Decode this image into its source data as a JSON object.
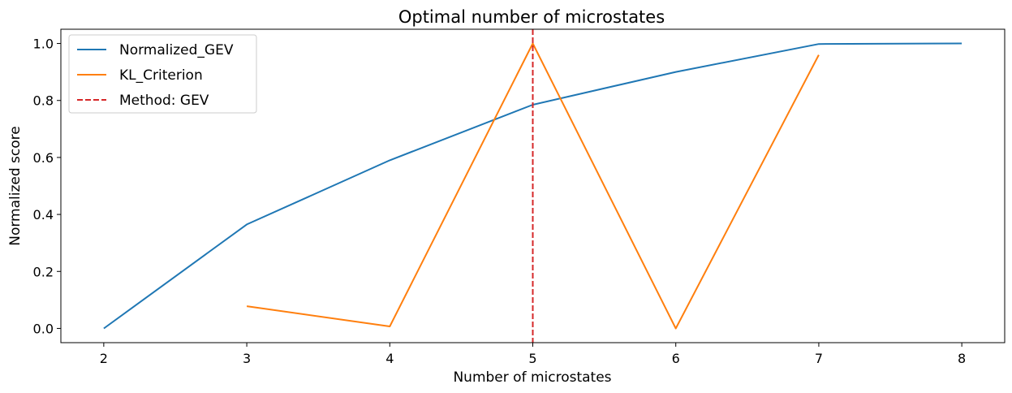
{
  "chart_data": {
    "type": "line",
    "title": "Optimal number of microstates",
    "xlabel": "Number of microstates",
    "ylabel": "Normalized score",
    "xlim": [
      1.7,
      8.3
    ],
    "ylim": [
      -0.05,
      1.05
    ],
    "xticks": [
      2,
      3,
      4,
      5,
      6,
      7,
      8
    ],
    "yticks": [
      0.0,
      0.2,
      0.4,
      0.6,
      0.8,
      1.0
    ],
    "ytick_labels": [
      "0.0",
      "0.2",
      "0.4",
      "0.6",
      "0.8",
      "1.0"
    ],
    "grid": false,
    "legend_position": "upper-left",
    "series": [
      {
        "name": "Normalized_GEV",
        "color": "#1f77b4",
        "style": "solid",
        "points": [
          [
            2,
            0.0
          ],
          [
            3,
            0.365
          ],
          [
            4,
            0.59
          ],
          [
            5,
            0.785
          ],
          [
            6,
            0.9
          ],
          [
            7,
            0.998
          ],
          [
            8,
            1.0
          ]
        ]
      },
      {
        "name": "KL_Criterion",
        "color": "#ff7f0e",
        "style": "solid",
        "points": [
          [
            3,
            0.078
          ],
          [
            4,
            0.007
          ],
          [
            5,
            1.0
          ],
          [
            6,
            0.0
          ],
          [
            7,
            0.96
          ]
        ]
      }
    ],
    "vlines": [
      {
        "name": "Method: GEV",
        "x": 5,
        "color": "#d62728",
        "style": "dashed"
      }
    ]
  }
}
